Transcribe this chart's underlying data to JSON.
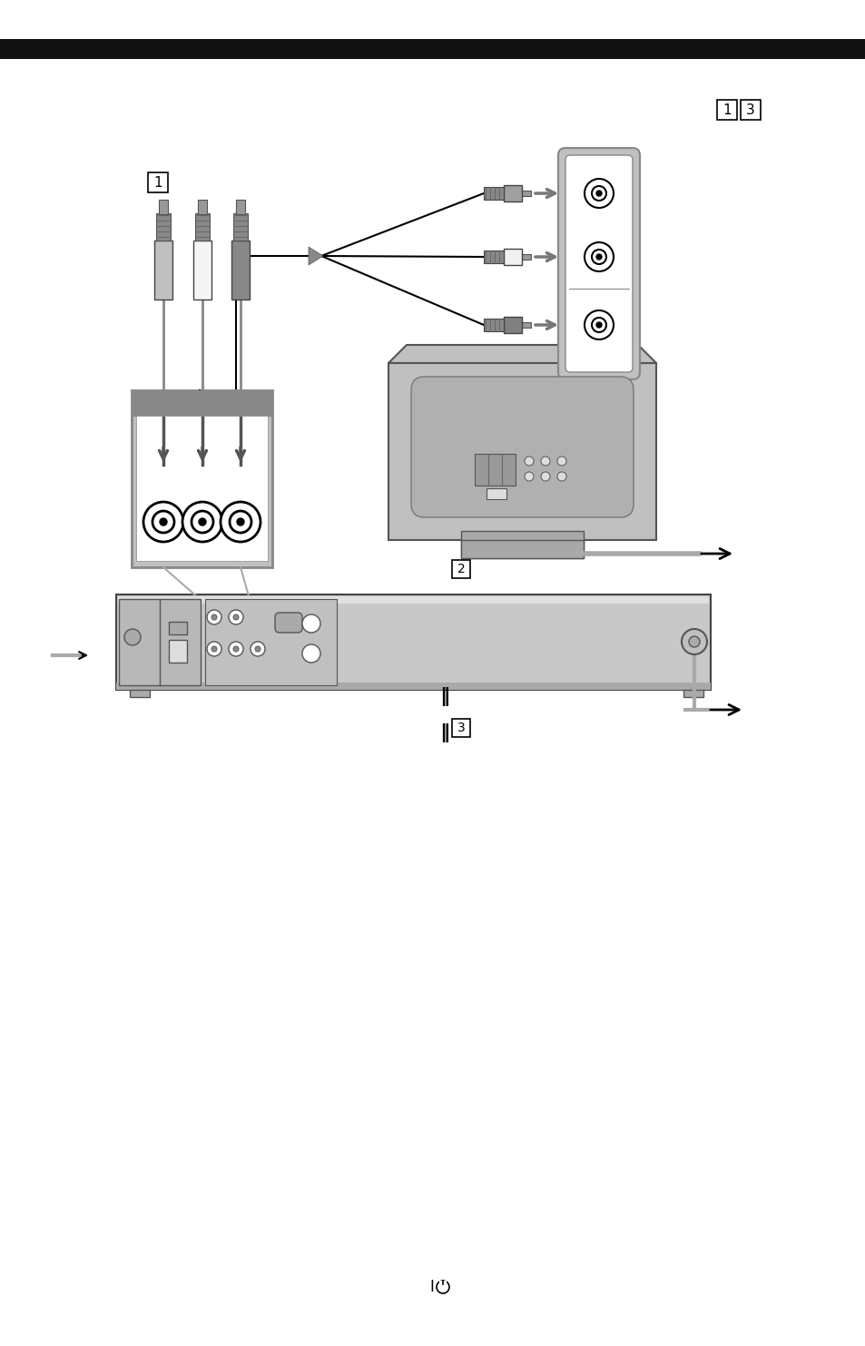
{
  "bg_color": "#ffffff",
  "top_bar_color": "#1a1a1a",
  "gray_panel": "#c8c8c8",
  "gray_dark": "#888888",
  "gray_med": "#aaaaaa",
  "gray_light": "#dddddd",
  "black": "#000000",
  "white": "#ffffff",
  "tv_gray": "#b8b8b8",
  "dvd_gray": "#c0c0c0"
}
